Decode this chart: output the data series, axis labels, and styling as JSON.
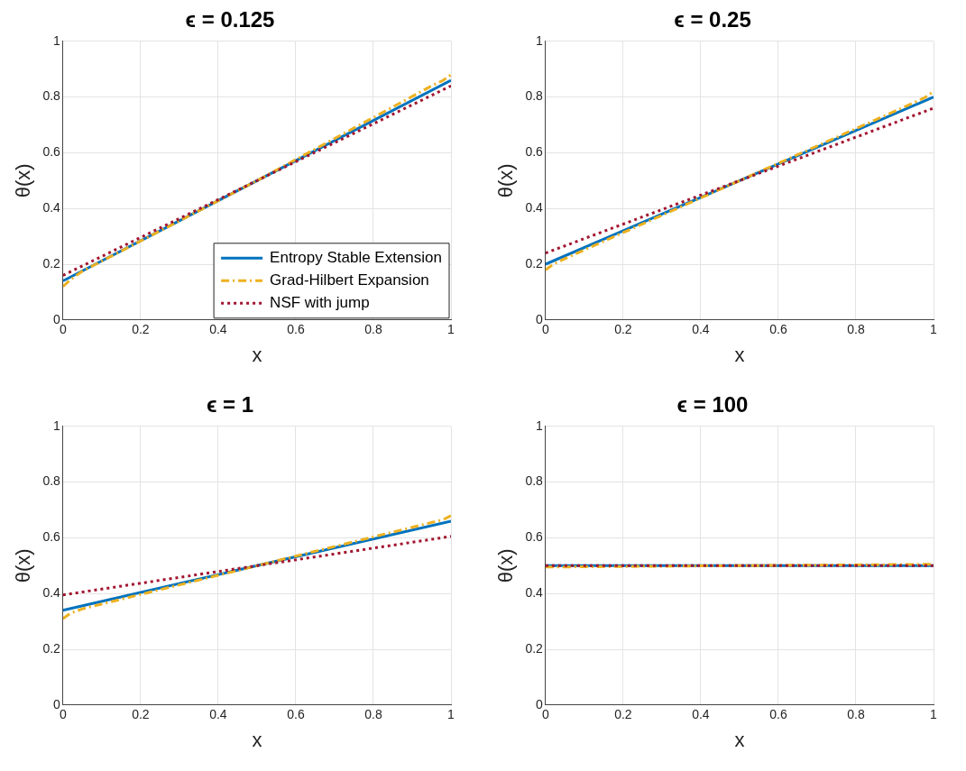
{
  "chart_data": [
    {
      "type": "line",
      "title": "ϵ = 0.125",
      "xlabel": "x",
      "ylabel": "θ(x)",
      "xlim": [
        0,
        1
      ],
      "ylim": [
        0,
        1
      ],
      "xticks": [
        0,
        0.2,
        0.4,
        0.6,
        0.8,
        1
      ],
      "yticks": [
        0,
        0.2,
        0.4,
        0.6,
        0.8,
        1
      ],
      "grid": true,
      "legend": "bottom right",
      "series": [
        {
          "name": "Entropy Stable Extension",
          "color": "#0072bd",
          "line_style": "solid",
          "x": [
            0,
            0.5,
            1
          ],
          "values": [
            0.14,
            0.5,
            0.86
          ]
        },
        {
          "name": "Grad-Hilbert Expansion",
          "color": "#edb120",
          "line_style": "dashed",
          "x": [
            0,
            0.02,
            0.05,
            0.5,
            0.95,
            0.98,
            1
          ],
          "values": [
            0.12,
            0.145,
            0.175,
            0.5,
            0.84,
            0.86,
            0.88
          ]
        },
        {
          "name": "NSF with jump",
          "color": "#a2142f",
          "line_style": "dotted",
          "x": [
            0,
            0.5,
            1
          ],
          "values": [
            0.16,
            0.5,
            0.84
          ]
        }
      ]
    },
    {
      "type": "line",
      "title": "ϵ = 0.25",
      "xlabel": "x",
      "ylabel": "θ(x)",
      "xlim": [
        0,
        1
      ],
      "ylim": [
        0,
        1
      ],
      "xticks": [
        0,
        0.2,
        0.4,
        0.6,
        0.8,
        1
      ],
      "yticks": [
        0,
        0.2,
        0.4,
        0.6,
        0.8,
        1
      ],
      "grid": true,
      "series": [
        {
          "color": "#0072bd",
          "line_style": "solid",
          "x": [
            0,
            0.5,
            1
          ],
          "values": [
            0.2,
            0.5,
            0.8
          ]
        },
        {
          "color": "#edb120",
          "line_style": "dashed",
          "x": [
            0,
            0.02,
            0.05,
            0.5,
            0.95,
            0.98,
            1
          ],
          "values": [
            0.18,
            0.2,
            0.22,
            0.5,
            0.78,
            0.8,
            0.82
          ]
        },
        {
          "color": "#a2142f",
          "line_style": "dotted",
          "x": [
            0,
            0.5,
            1
          ],
          "values": [
            0.24,
            0.5,
            0.76
          ]
        }
      ]
    },
    {
      "type": "line",
      "title": "ϵ = 1",
      "xlabel": "x",
      "ylabel": "θ(x)",
      "xlim": [
        0,
        1
      ],
      "ylim": [
        0,
        1
      ],
      "xticks": [
        0,
        0.2,
        0.4,
        0.6,
        0.8,
        1
      ],
      "yticks": [
        0,
        0.2,
        0.4,
        0.6,
        0.8,
        1
      ],
      "grid": true,
      "series": [
        {
          "color": "#0072bd",
          "line_style": "solid",
          "x": [
            0,
            0.5,
            1
          ],
          "values": [
            0.34,
            0.5,
            0.66
          ]
        },
        {
          "color": "#edb120",
          "line_style": "dashed",
          "x": [
            0,
            0.02,
            0.05,
            0.5,
            0.95,
            0.98,
            1
          ],
          "values": [
            0.31,
            0.33,
            0.345,
            0.5,
            0.655,
            0.665,
            0.68
          ]
        },
        {
          "color": "#a2142f",
          "line_style": "dotted",
          "x": [
            0,
            0.5,
            1
          ],
          "values": [
            0.395,
            0.5,
            0.605
          ]
        }
      ]
    },
    {
      "type": "line",
      "title": "ϵ = 100",
      "xlabel": "x",
      "ylabel": "θ(x)",
      "xlim": [
        0,
        1
      ],
      "ylim": [
        0,
        1
      ],
      "xticks": [
        0,
        0.2,
        0.4,
        0.6,
        0.8,
        1
      ],
      "yticks": [
        0,
        0.2,
        0.4,
        0.6,
        0.8,
        1
      ],
      "grid": true,
      "series": [
        {
          "color": "#0072bd",
          "line_style": "solid",
          "x": [
            0,
            0.5,
            1
          ],
          "values": [
            0.5,
            0.5,
            0.5
          ]
        },
        {
          "color": "#edb120",
          "line_style": "dashed",
          "x": [
            0,
            0.5,
            1
          ],
          "values": [
            0.495,
            0.5,
            0.505
          ]
        },
        {
          "color": "#a2142f",
          "line_style": "dotted",
          "x": [
            0,
            0.5,
            1
          ],
          "values": [
            0.5,
            0.5,
            0.5
          ]
        }
      ]
    }
  ]
}
